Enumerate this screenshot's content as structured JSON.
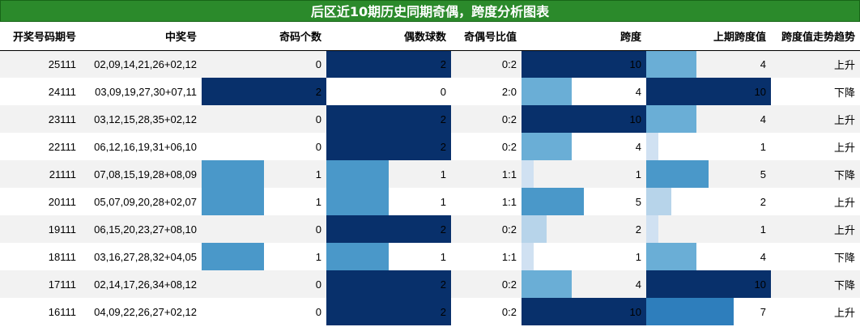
{
  "title": "后区近10期历史同期奇偶，跨度分析图表",
  "columns": [
    "开奖号码期号",
    "中奖号",
    "奇码个数",
    "偶数球数",
    "奇偶号比值",
    "跨度",
    "上期跨度值",
    "跨度值走势趋势"
  ],
  "chart_data": {
    "type": "table",
    "title": "后区近10期历史同期奇偶，跨度分析图表",
    "bar_columns": [
      "奇码个数",
      "偶数球数",
      "跨度",
      "上期跨度值"
    ],
    "bar_ranges": {
      "奇码个数": [
        0,
        2
      ],
      "偶数球数": [
        0,
        2
      ],
      "跨度": [
        0,
        10
      ],
      "上期跨度值": [
        0,
        10
      ]
    },
    "rows": [
      {
        "period": "25111",
        "numbers": "02,09,14,21,26+02,12",
        "odd": 0,
        "even": 2,
        "ratio": "0:2",
        "span": 10,
        "prev_span": 4,
        "trend": "上升"
      },
      {
        "period": "24111",
        "numbers": "03,09,19,27,30+07,11",
        "odd": 2,
        "even": 0,
        "ratio": "2:0",
        "span": 4,
        "prev_span": 10,
        "trend": "下降"
      },
      {
        "period": "23111",
        "numbers": "03,12,15,28,35+02,12",
        "odd": 0,
        "even": 2,
        "ratio": "0:2",
        "span": 10,
        "prev_span": 4,
        "trend": "上升"
      },
      {
        "period": "22111",
        "numbers": "06,12,16,19,31+06,10",
        "odd": 0,
        "even": 2,
        "ratio": "0:2",
        "span": 4,
        "prev_span": 1,
        "trend": "上升"
      },
      {
        "period": "21111",
        "numbers": "07,08,15,19,28+08,09",
        "odd": 1,
        "even": 1,
        "ratio": "1:1",
        "span": 1,
        "prev_span": 5,
        "trend": "下降"
      },
      {
        "period": "20111",
        "numbers": "05,07,09,20,28+02,07",
        "odd": 1,
        "even": 1,
        "ratio": "1:1",
        "span": 5,
        "prev_span": 2,
        "trend": "上升"
      },
      {
        "period": "19111",
        "numbers": "06,15,20,23,27+08,10",
        "odd": 0,
        "even": 2,
        "ratio": "0:2",
        "span": 2,
        "prev_span": 1,
        "trend": "上升"
      },
      {
        "period": "18111",
        "numbers": "03,16,27,28,32+04,05",
        "odd": 1,
        "even": 1,
        "ratio": "1:1",
        "span": 1,
        "prev_span": 4,
        "trend": "下降"
      },
      {
        "period": "17111",
        "numbers": "02,14,17,26,34+08,12",
        "odd": 0,
        "even": 2,
        "ratio": "0:2",
        "span": 4,
        "prev_span": 10,
        "trend": "下降"
      },
      {
        "period": "16111",
        "numbers": "04,09,22,26,27+02,12",
        "odd": 0,
        "even": 2,
        "ratio": "0:2",
        "span": 10,
        "prev_span": 7,
        "trend": "上升"
      }
    ]
  },
  "colors": {
    "title_bg": "#2b8a2b",
    "bar_scale": [
      "#e3eef9",
      "#d0e1f2",
      "#b7d4ea",
      "#94c4df",
      "#6aaed6",
      "#4a98c9",
      "#2e7ebc",
      "#1764ab",
      "#084a91",
      "#08306b"
    ]
  }
}
